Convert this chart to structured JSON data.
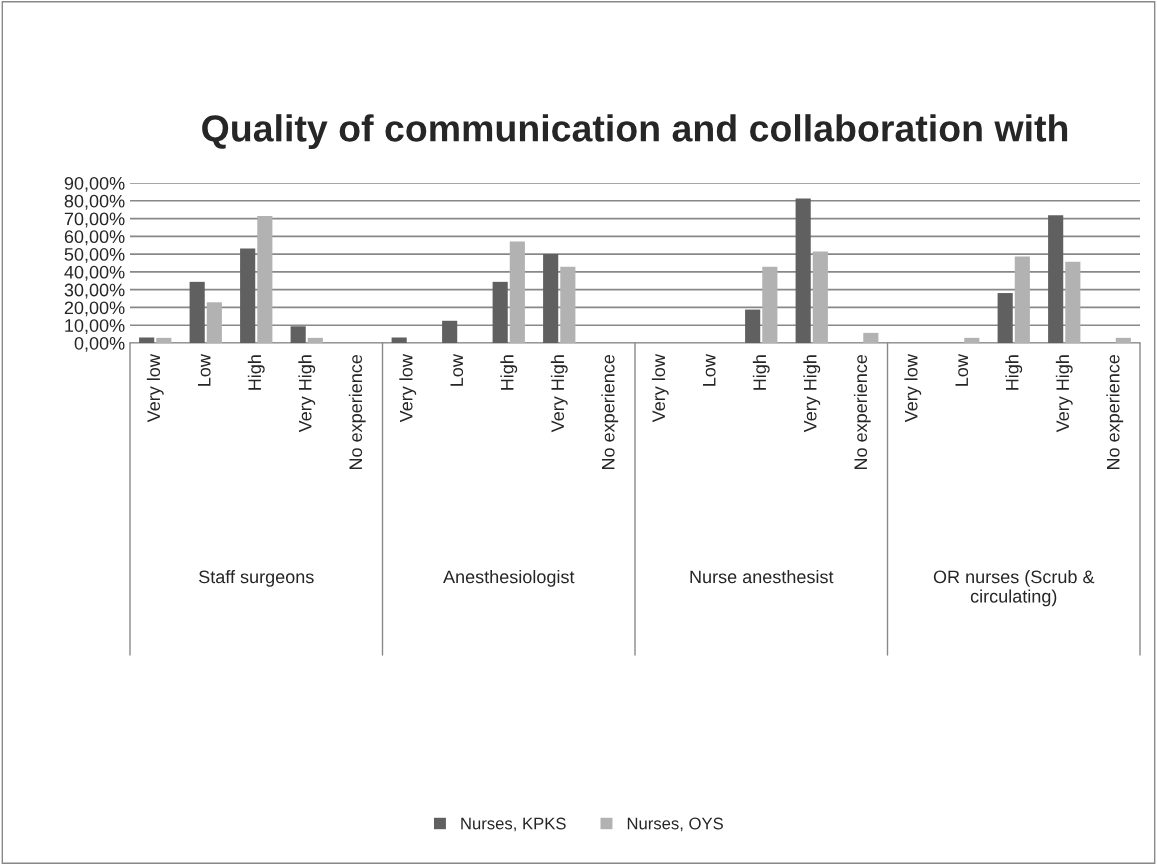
{
  "chart_data": {
    "type": "bar",
    "title": "Quality of communication and collaboration with",
    "categories": [
      "Very low",
      "Low",
      "High",
      "Very High",
      "No experience",
      "Very low",
      "Low",
      "High",
      "Very High",
      "No experience",
      "Very low",
      "Low",
      "High",
      "Very High",
      "No experience",
      "Very low",
      "Low",
      "High",
      "Very High",
      "No experience"
    ],
    "annotations": [
      "Staff surgeons",
      "Anesthesiologist",
      "Nurse anesthesist",
      "OR nurses (Scrub & circulating)"
    ],
    "series": [
      {
        "name": "Nurses, KPKS",
        "color": "#606060",
        "values": [
          3.1,
          34.4,
          53.1,
          9.4,
          0,
          3.1,
          12.5,
          34.4,
          50.0,
          0,
          0,
          0,
          18.8,
          81.3,
          0,
          0,
          0,
          28.1,
          71.9,
          0
        ]
      },
      {
        "name": "Nurses, OYS",
        "color": "#b2b2b2",
        "values": [
          2.9,
          22.9,
          71.4,
          2.9,
          0,
          0,
          0,
          57.1,
          42.9,
          0,
          0,
          0,
          42.9,
          51.4,
          5.7,
          0,
          2.9,
          48.6,
          45.7,
          2.9
        ]
      }
    ],
    "ylim": [
      0,
      90
    ],
    "yticks": [
      {
        "value": 0,
        "label": "0,00%"
      },
      {
        "value": 10,
        "label": "10,00%"
      },
      {
        "value": 20,
        "label": "20,00%"
      },
      {
        "value": 30,
        "label": "30,00%"
      },
      {
        "value": 40,
        "label": "40,00%"
      },
      {
        "value": 50,
        "label": "50,00%"
      },
      {
        "value": 60,
        "label": "60,00%"
      },
      {
        "value": 70,
        "label": "70,00%"
      },
      {
        "value": 80,
        "label": "80,00%"
      },
      {
        "value": 90,
        "label": "90,00%"
      }
    ],
    "grid": "y",
    "legend": "bottom"
  }
}
